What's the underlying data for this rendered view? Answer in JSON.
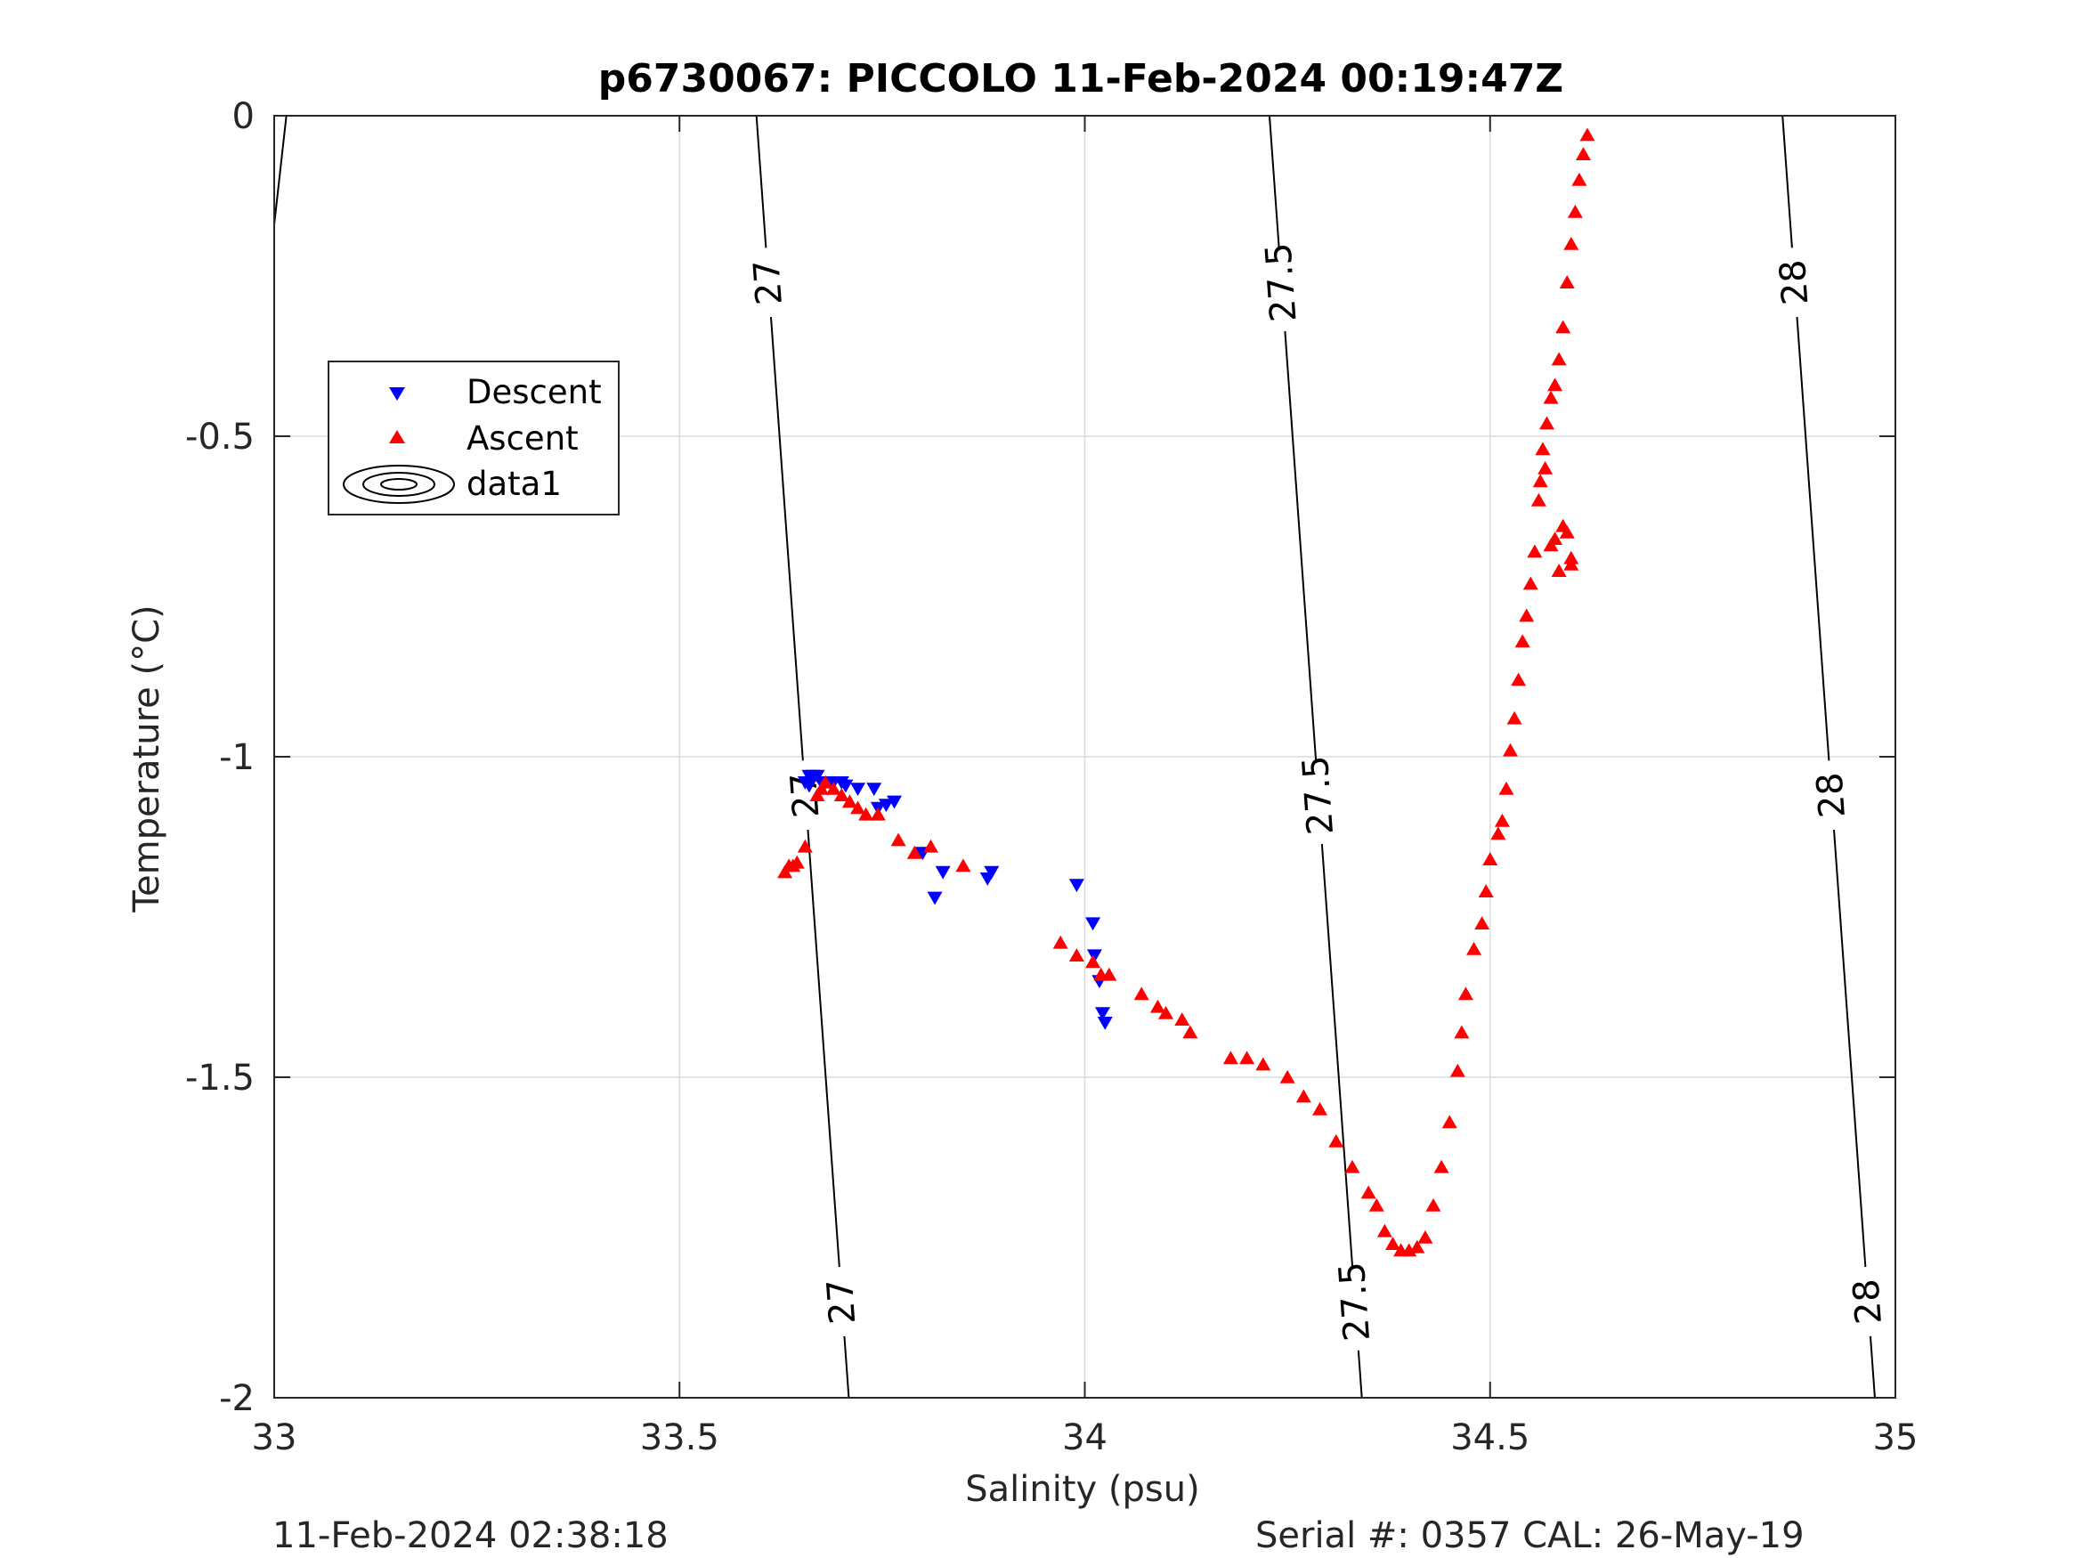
{
  "chart_data": {
    "type": "scatter",
    "title": "p6730067: PICCOLO 11-Feb-2024 00:19:47Z",
    "xlabel": "Salinity (psu)",
    "ylabel": "Temperature (°C)",
    "xlim": [
      33,
      35
    ],
    "ylim": [
      -2,
      0
    ],
    "xticks": [
      33,
      33.5,
      34,
      34.5,
      35
    ],
    "xtick_labels": [
      "33",
      "33.5",
      "34",
      "34.5",
      "35"
    ],
    "yticks": [
      -2,
      -1.5,
      -1,
      -0.5,
      0
    ],
    "ytick_labels": [
      "-2",
      "-1.5",
      "-1",
      "-0.5",
      "0"
    ],
    "grid": true,
    "legend_placement": "left",
    "legend": [
      "Descent",
      "Ascent",
      "data1"
    ],
    "series": [
      {
        "name": "Descent",
        "marker": "triangle-down",
        "color": "#0000ff",
        "points": [
          [
            33.66,
            -1.03
          ],
          [
            33.665,
            -1.03
          ],
          [
            33.67,
            -1.03
          ],
          [
            33.655,
            -1.04
          ],
          [
            33.66,
            -1.045
          ],
          [
            33.675,
            -1.04
          ],
          [
            33.68,
            -1.04
          ],
          [
            33.69,
            -1.04
          ],
          [
            33.7,
            -1.04
          ],
          [
            33.705,
            -1.045
          ],
          [
            33.72,
            -1.05
          ],
          [
            33.74,
            -1.05
          ],
          [
            33.745,
            -1.08
          ],
          [
            33.755,
            -1.075
          ],
          [
            33.765,
            -1.07
          ],
          [
            33.8,
            -1.15
          ],
          [
            33.815,
            -1.22
          ],
          [
            33.825,
            -1.18
          ],
          [
            33.88,
            -1.19
          ],
          [
            33.885,
            -1.18
          ],
          [
            33.99,
            -1.2
          ],
          [
            34.01,
            -1.26
          ],
          [
            34.012,
            -1.31
          ],
          [
            34.018,
            -1.35
          ],
          [
            34.022,
            -1.4
          ],
          [
            34.025,
            -1.415
          ]
        ]
      },
      {
        "name": "Ascent",
        "marker": "triangle-up",
        "color": "#ff0000",
        "points": [
          [
            33.63,
            -1.18
          ],
          [
            33.635,
            -1.17
          ],
          [
            33.64,
            -1.17
          ],
          [
            33.645,
            -1.165
          ],
          [
            33.655,
            -1.14
          ],
          [
            33.67,
            -1.06
          ],
          [
            33.675,
            -1.05
          ],
          [
            33.68,
            -1.04
          ],
          [
            33.69,
            -1.05
          ],
          [
            33.7,
            -1.06
          ],
          [
            33.71,
            -1.07
          ],
          [
            33.72,
            -1.08
          ],
          [
            33.73,
            -1.09
          ],
          [
            33.745,
            -1.09
          ],
          [
            33.77,
            -1.13
          ],
          [
            33.79,
            -1.15
          ],
          [
            33.81,
            -1.14
          ],
          [
            33.85,
            -1.17
          ],
          [
            33.97,
            -1.29
          ],
          [
            33.99,
            -1.31
          ],
          [
            34.01,
            -1.32
          ],
          [
            34.02,
            -1.34
          ],
          [
            34.03,
            -1.34
          ],
          [
            34.07,
            -1.37
          ],
          [
            34.09,
            -1.39
          ],
          [
            34.1,
            -1.4
          ],
          [
            34.12,
            -1.41
          ],
          [
            34.13,
            -1.43
          ],
          [
            34.18,
            -1.47
          ],
          [
            34.2,
            -1.47
          ],
          [
            34.22,
            -1.48
          ],
          [
            34.25,
            -1.5
          ],
          [
            34.27,
            -1.53
          ],
          [
            34.29,
            -1.55
          ],
          [
            34.31,
            -1.6
          ],
          [
            34.33,
            -1.64
          ],
          [
            34.35,
            -1.68
          ],
          [
            34.36,
            -1.7
          ],
          [
            34.37,
            -1.74
          ],
          [
            34.38,
            -1.76
          ],
          [
            34.39,
            -1.77
          ],
          [
            34.4,
            -1.77
          ],
          [
            34.41,
            -1.765
          ],
          [
            34.42,
            -1.75
          ],
          [
            34.43,
            -1.7
          ],
          [
            34.44,
            -1.64
          ],
          [
            34.45,
            -1.57
          ],
          [
            34.46,
            -1.49
          ],
          [
            34.465,
            -1.43
          ],
          [
            34.47,
            -1.37
          ],
          [
            34.48,
            -1.3
          ],
          [
            34.49,
            -1.26
          ],
          [
            34.495,
            -1.21
          ],
          [
            34.5,
            -1.16
          ],
          [
            34.51,
            -1.12
          ],
          [
            34.515,
            -1.1
          ],
          [
            34.52,
            -1.05
          ],
          [
            34.525,
            -0.99
          ],
          [
            34.53,
            -0.94
          ],
          [
            34.535,
            -0.88
          ],
          [
            34.54,
            -0.82
          ],
          [
            34.545,
            -0.78
          ],
          [
            34.55,
            -0.73
          ],
          [
            34.555,
            -0.68
          ],
          [
            34.56,
            -0.6
          ],
          [
            34.565,
            -0.52
          ],
          [
            34.57,
            -0.48
          ],
          [
            34.575,
            -0.44
          ],
          [
            34.58,
            -0.42
          ],
          [
            34.585,
            -0.38
          ],
          [
            34.59,
            -0.33
          ],
          [
            34.595,
            -0.26
          ],
          [
            34.6,
            -0.2
          ],
          [
            34.605,
            -0.15
          ],
          [
            34.61,
            -0.1
          ],
          [
            34.615,
            -0.06
          ],
          [
            34.62,
            -0.03
          ],
          [
            34.6,
            -0.69
          ],
          [
            34.58,
            -0.66
          ],
          [
            34.59,
            -0.64
          ],
          [
            34.595,
            -0.65
          ],
          [
            34.6,
            -0.7
          ],
          [
            34.585,
            -0.71
          ],
          [
            34.575,
            -0.67
          ],
          [
            34.562,
            -0.57
          ],
          [
            34.568,
            -0.55
          ]
        ]
      },
      {
        "name": "data1",
        "type": "contour",
        "color": "#000000",
        "levels": [
          27,
          27.5,
          28
        ],
        "level_labels": [
          "27",
          "27.5",
          "28"
        ]
      }
    ]
  },
  "footer": {
    "timestamp": "11-Feb-2024 02:38:18",
    "serial_cal": "Serial #: 0357  CAL: 26-May-19"
  }
}
